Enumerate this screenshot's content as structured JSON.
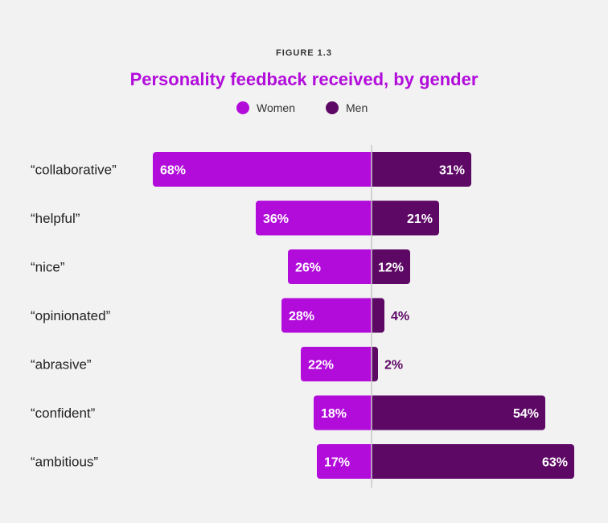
{
  "figure_label": "FIGURE 1.3",
  "colors": {
    "women": "#b20cdb",
    "men": "#5e0866",
    "title": "#b20cdb",
    "divider": "#c8c8c8"
  },
  "chart_data": {
    "type": "bar",
    "orientation": "horizontal-diverging",
    "title": "Personality feedback received, by gender",
    "legend": [
      {
        "name": "Women",
        "color": "#b20cdb"
      },
      {
        "name": "Men",
        "color": "#5e0866"
      }
    ],
    "categories": [
      "“collaborative”",
      "“helpful”",
      "“nice”",
      "“opinionated”",
      "“abrasive”",
      "“confident”",
      "“ambitious”"
    ],
    "series": [
      {
        "name": "Women",
        "direction": "left",
        "values": [
          68,
          36,
          26,
          28,
          22,
          18,
          17
        ],
        "labels": [
          "68%",
          "36%",
          "26%",
          "28%",
          "22%",
          "18%",
          "17%"
        ]
      },
      {
        "name": "Men",
        "direction": "right",
        "values": [
          31,
          21,
          12,
          4,
          2,
          54,
          63
        ],
        "labels": [
          "31%",
          "21%",
          "12%",
          "4%",
          "2%",
          "54%",
          "63%"
        ]
      }
    ],
    "xlim": [
      0,
      68
    ],
    "unit": "%"
  }
}
